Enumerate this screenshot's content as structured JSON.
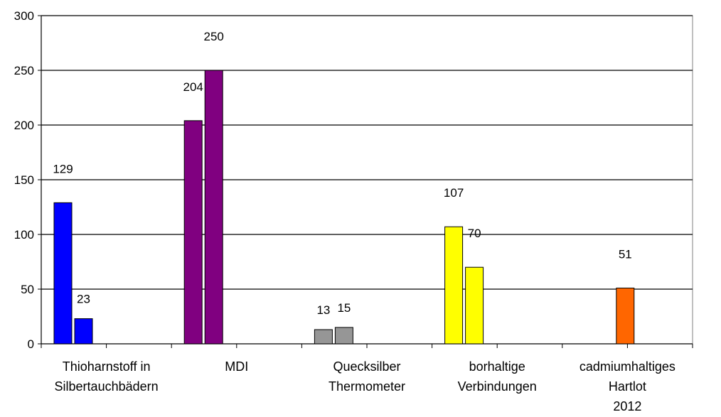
{
  "chart_data": {
    "type": "bar",
    "categories": [
      [
        "Thioharnstoff in",
        "Silbertauchbädern"
      ],
      [
        "MDI"
      ],
      [
        "Quecksilber",
        "Thermometer"
      ],
      [
        "borhaltige",
        "Verbindungen"
      ],
      [
        "cadmiumhaltiges",
        "Hartlot",
        "2012"
      ]
    ],
    "bars": [
      {
        "category": 0,
        "slot": 0,
        "value": 129,
        "label": "129",
        "color": "#0000FF"
      },
      {
        "category": 0,
        "slot": 1,
        "value": 23,
        "label": "23",
        "color": "#0000FF"
      },
      {
        "category": 1,
        "slot": 0,
        "value": 204,
        "label": "204",
        "color": "#800080"
      },
      {
        "category": 1,
        "slot": 1,
        "value": 250,
        "label": "250",
        "color": "#800080"
      },
      {
        "category": 2,
        "slot": 0,
        "value": 13,
        "label": "13",
        "color": "#969696"
      },
      {
        "category": 2,
        "slot": 1,
        "value": 15,
        "label": "15",
        "color": "#969696"
      },
      {
        "category": 3,
        "slot": 0,
        "value": 107,
        "label": "107",
        "color": "#FFFF00"
      },
      {
        "category": 3,
        "slot": 1,
        "value": 70,
        "label": "70",
        "color": "#FFFF00"
      },
      {
        "category": 4,
        "slot": 2,
        "value": 51,
        "label": "51",
        "color": "#FF6600"
      }
    ],
    "yticks": [
      "0",
      "50",
      "100",
      "150",
      "200",
      "250",
      "300"
    ],
    "ylim": [
      0,
      300
    ],
    "grid": true,
    "title": "",
    "xlabel": "",
    "ylabel": ""
  }
}
